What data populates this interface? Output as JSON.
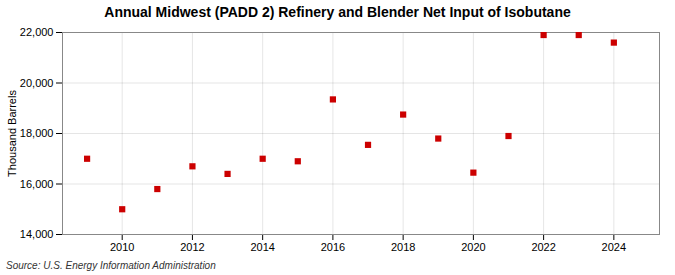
{
  "chart_data": {
    "type": "scatter",
    "title": "Annual Midwest (PADD 2) Refinery and Blender Net Input of Isobutane",
    "ylabel": "Thousand Barrels",
    "source": "Source: U.S. Energy Information Administration",
    "x": [
      2009,
      2010,
      2011,
      2012,
      2013,
      2014,
      2015,
      2016,
      2017,
      2018,
      2019,
      2020,
      2021,
      2022,
      2023,
      2024
    ],
    "values": [
      17000,
      15000,
      15800,
      16700,
      16400,
      17000,
      16900,
      19350,
      17550,
      18750,
      17800,
      16450,
      17900,
      21900,
      21900,
      21600
    ],
    "color": "#cc0000",
    "marker": "square",
    "xlim": [
      2008.3,
      2025.3
    ],
    "xticks": [
      2010,
      2012,
      2014,
      2016,
      2018,
      2020,
      2022,
      2024
    ],
    "ylim": [
      14000,
      22000
    ],
    "yticks": [
      {
        "value": 14000,
        "label": "14,000"
      },
      {
        "value": 16000,
        "label": "16,000"
      },
      {
        "value": 18000,
        "label": "18,000"
      },
      {
        "value": 20000,
        "label": "20,000"
      },
      {
        "value": 22000,
        "label": "22,000"
      }
    ],
    "grid": true
  }
}
